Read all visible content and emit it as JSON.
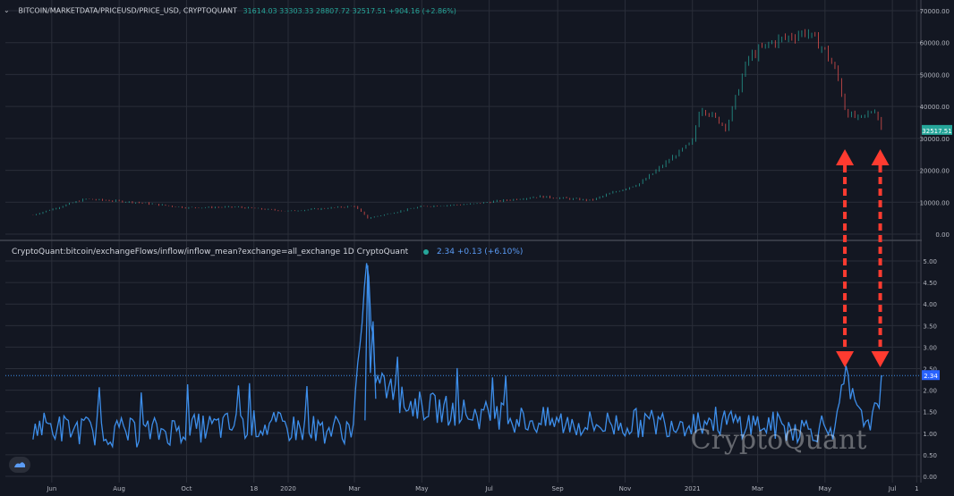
{
  "header": {
    "symbol": "BITCOIN/MARKETDATA/PRICEUSD/PRICE_USD, CRYPTOQUANT",
    "ohlc": "31614.03 33303.33 28807.72 32517.51 +904.16 (+2.86%)"
  },
  "indicator": {
    "name": "CryptoQuant:bitcoin/exchangeFlows/inflow/inflow_mean?exchange=all_exchange  1D  CryptoQuant",
    "value": "2.34 +0.13 (+6.10%)"
  },
  "watermark": "CryptoQuant",
  "colors": {
    "background": "#131722",
    "grid": "#2a2e39",
    "indicator_line": "#3d8eea",
    "price_up": "#26a69a",
    "price_down": "#ef5350",
    "arrow": "#ff3b30"
  },
  "icons": [
    "chevron-down-icon",
    "cryptoquant-logo-icon"
  ],
  "chart_data": [
    {
      "type": "line",
      "title": "BITCOIN/MARKETDATA/PRICEUSD/PRICE_USD, CRYPTOQUANT",
      "x_tick_labels": [
        "Jun",
        "Aug",
        "Oct",
        "18",
        "2020",
        "Mar",
        "May",
        "Jul",
        "Sep",
        "Nov",
        "2021",
        "Mar",
        "May",
        "Jul",
        "1"
      ],
      "y_tick_labels": [
        "0.00",
        "10000.00",
        "20000.00",
        "30000.00",
        "40000.00",
        "50000.00",
        "60000.00",
        "70000.00"
      ],
      "ylim": [
        0,
        70000
      ],
      "last_value_label": "32517.51",
      "series": [
        {
          "x": [
            "2019-05-15",
            "2019-07-01",
            "2019-08-15",
            "2019-10-01",
            "2019-11-15",
            "2020-01-01",
            "2020-03-01",
            "2020-03-13",
            "2020-05-01",
            "2020-06-15",
            "2020-08-15",
            "2020-10-01",
            "2020-11-15",
            "2021-01-01",
            "2021-01-08",
            "2021-02-01",
            "2021-02-20",
            "2021-03-13",
            "2021-04-14",
            "2021-05-01",
            "2021-05-12",
            "2021-05-20",
            "2021-06-01",
            "2021-06-15",
            "2021-06-22"
          ],
          "values": [
            6000,
            11000,
            10000,
            8300,
            8500,
            7200,
            8800,
            5000,
            8700,
            9400,
            11800,
            10600,
            16000,
            29000,
            40000,
            33500,
            55000,
            60000,
            63500,
            57500,
            50000,
            38000,
            36000,
            39000,
            32517
          ]
        }
      ]
    },
    {
      "type": "line",
      "title": "CryptoQuant:bitcoin/exchangeFlows/inflow/inflow_mean?exchange=all_exchange",
      "y_tick_labels": [
        "0.00",
        "0.50",
        "1.00",
        "1.50",
        "2.00",
        "2.50",
        "3.00",
        "3.50",
        "4.00",
        "4.50",
        "5.00"
      ],
      "ylim": [
        0,
        5.25
      ],
      "last_value_label": "2.34",
      "reference_line": 2.34,
      "series": [
        {
          "x": [
            "2019-05-15",
            "2019-06-15",
            "2019-08-15",
            "2019-10-01",
            "2019-12-01",
            "2020-01-15",
            "2020-02-28",
            "2020-03-13",
            "2020-03-20",
            "2020-04-15",
            "2020-06-01",
            "2020-08-01",
            "2020-10-01",
            "2020-12-01",
            "2021-01-15",
            "2021-03-01",
            "2021-04-15",
            "2021-05-12",
            "2021-05-19",
            "2021-06-01",
            "2021-06-15",
            "2021-06-22"
          ],
          "values": [
            1.2,
            1.1,
            1.0,
            1.1,
            1.2,
            1.1,
            1.1,
            4.9,
            2.3,
            1.7,
            1.5,
            1.3,
            1.2,
            1.25,
            1.3,
            1.2,
            1.1,
            1.2,
            2.34,
            1.3,
            1.4,
            2.34
          ]
        }
      ]
    }
  ]
}
